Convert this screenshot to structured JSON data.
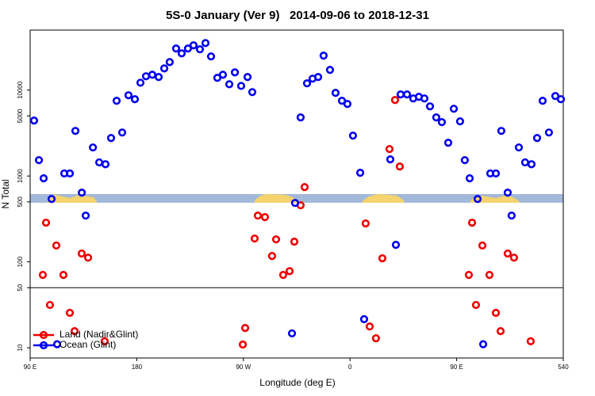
{
  "chart_data": {
    "type": "scatter",
    "title": "5S-0 January (Ver 9)   2014-09-06 to 2018-12-31",
    "x_label": "Longitude (deg E)",
    "y_label": "N Total",
    "xlim": [
      90,
      540
    ],
    "xticks": [
      {
        "value": 90,
        "label": "90 E"
      },
      180,
      {
        "value": 270,
        "label": "90 W"
      },
      {
        "value": 360,
        "label": "0"
      },
      {
        "value": 450,
        "label": "90 E"
      },
      540
    ],
    "ylim": [
      7.6,
      50000
    ],
    "yticks": [
      10,
      50,
      100,
      500,
      1000,
      5000,
      10000
    ],
    "log_y": true,
    "legend": "bottomleft",
    "series": [
      {
        "name": "Land (Nadir&Glint)",
        "color": "#ee0000",
        "x": [
          100.7,
          103.4,
          106.7,
          112.1,
          118.1,
          123.5,
          127.5,
          133.5,
          138.9,
          152.9,
          269.5,
          271.5,
          279.5,
          282.2,
          288.2,
          294.2,
          297.6,
          303.6,
          309,
          313,
          318.3,
          321.7,
          373.2,
          376.6,
          381.9,
          387.3,
          393.3,
          398,
          402,
          460.3,
          463,
          466.3,
          471.7,
          477.7,
          483.1,
          487.1,
          493.1,
          498.4,
          512.5
        ],
        "values": [
          70.5,
          286,
          31.5,
          155,
          70.5,
          25.5,
          15.6,
          125,
          112,
          11.9,
          10.9,
          17,
          187,
          346,
          332,
          117,
          183,
          70.5,
          78,
          172,
          456,
          743,
          280,
          17.7,
          12.9,
          110,
          2060,
          7670,
          1290,
          70.5,
          286,
          31.5,
          155,
          70.5,
          25.5,
          15.6,
          125,
          112,
          11.9
        ]
      },
      {
        "name": "Ocean (Glint)",
        "color": "#0000ee",
        "x": [
          93.3,
          97.4,
          101.4,
          108.1,
          112.8,
          118.8,
          123.5,
          128.2,
          133.6,
          136.9,
          143,
          148.3,
          153.6,
          158.3,
          163,
          167.7,
          173,
          178.4,
          183.1,
          187.8,
          193.1,
          198.5,
          203.2,
          207.8,
          213.2,
          217.9,
          223.2,
          227.9,
          233.3,
          238,
          242.7,
          248,
          252.7,
          258.1,
          262.8,
          268.1,
          273.5,
          277.5,
          311,
          313.6,
          318.3,
          323.7,
          328.4,
          333.1,
          337.7,
          343.1,
          347.8,
          353.2,
          357.8,
          362.5,
          368.6,
          371.9,
          394,
          398.7,
          402.7,
          408.1,
          413.4,
          418.1,
          422.8,
          427.5,
          432.8,
          437.5,
          442.9,
          447.6,
          452.9,
          456.9,
          461,
          467.7,
          472.4,
          478.4,
          483.1,
          487.7,
          493.1,
          496.4,
          502.5,
          507.8,
          513.2,
          517.9,
          522.6,
          527.9,
          533.3,
          538
        ],
        "values": [
          4420,
          1530,
          940,
          540,
          11,
          1070,
          1070,
          3350,
          640,
          346,
          2150,
          1440,
          1370,
          2770,
          7520,
          3210,
          8710,
          7840,
          12200,
          14500,
          15100,
          14200,
          17900,
          21200,
          30500,
          26800,
          30500,
          33200,
          29900,
          35300,
          24700,
          13900,
          15100,
          11700,
          16100,
          11200,
          14200,
          9480,
          14.7,
          486,
          4810,
          12000,
          13600,
          14200,
          25200,
          17200,
          9290,
          7520,
          6900,
          2950,
          1090,
          21.5,
          1560,
          158,
          8900,
          8900,
          8000,
          8350,
          8000,
          6470,
          4810,
          4240,
          2440,
          6070,
          4330,
          1530,
          940,
          540,
          11,
          1070,
          1070,
          3350,
          640,
          346,
          2150,
          1440,
          1370,
          2770,
          7520,
          3210,
          8530,
          7840
        ]
      }
    ]
  }
}
